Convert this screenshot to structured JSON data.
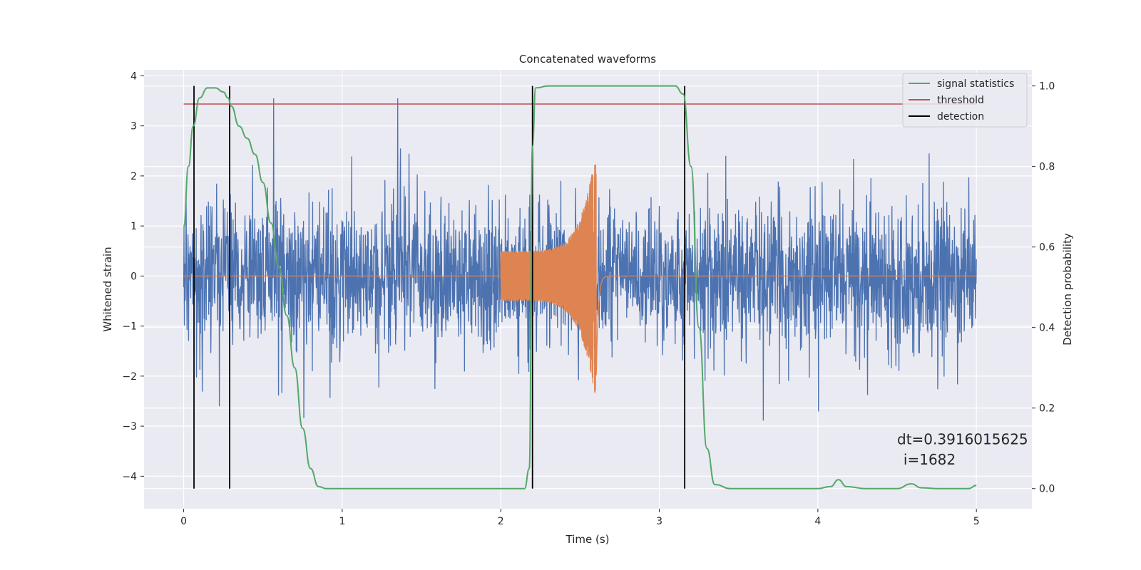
{
  "chart_data": {
    "type": "line",
    "title": "Concatenated waveforms",
    "xlabel": "Time (s)",
    "ylabel_left": "Whitened strain",
    "ylabel_right": "Detection probability",
    "xlim": [
      -0.25,
      5.35
    ],
    "ylim_left": [
      -4.65,
      4.12
    ],
    "ylim_right": [
      -0.05,
      1.04
    ],
    "x_ticks": [
      0,
      1,
      2,
      3,
      4,
      5
    ],
    "x_tick_labels": [
      "0",
      "1",
      "2",
      "3",
      "4",
      "5"
    ],
    "y_left_ticks": [
      -4,
      -3,
      -2,
      -1,
      0,
      1,
      2,
      3,
      4
    ],
    "y_left_tick_labels": [
      "−4",
      "−3",
      "−2",
      "−1",
      "0",
      "1",
      "2",
      "3",
      "4"
    ],
    "y_right_ticks": [
      0.0,
      0.2,
      0.4,
      0.6,
      0.8,
      1.0
    ],
    "y_right_tick_labels": [
      "0.0",
      "0.2",
      "0.4",
      "0.6",
      "0.8",
      "1.0"
    ],
    "grid": true,
    "legend_position": "top-right",
    "legend": [
      {
        "label": "signal statistics",
        "color": "#55a868"
      },
      {
        "label": "threshold",
        "color": "#c44e52"
      },
      {
        "label": "detection",
        "color": "#000000"
      }
    ],
    "noise": {
      "color": "#4c72b0",
      "x_range": [
        0,
        5
      ],
      "std": 0.72
    },
    "injection": {
      "color": "#dd8452",
      "start": 2.0,
      "merger": 2.6,
      "end": 2.75,
      "start_amplitude": 0.5,
      "peak_amplitude": 2.5
    },
    "signal_statistics": {
      "color": "#55a868",
      "points": [
        [
          0.0,
          0.65
        ],
        [
          0.03,
          0.8
        ],
        [
          0.06,
          0.9
        ],
        [
          0.1,
          0.97
        ],
        [
          0.15,
          0.995
        ],
        [
          0.2,
          0.995
        ],
        [
          0.25,
          0.985
        ],
        [
          0.28,
          0.97
        ],
        [
          0.3,
          0.95
        ],
        [
          0.35,
          0.9
        ],
        [
          0.4,
          0.87
        ],
        [
          0.45,
          0.83
        ],
        [
          0.5,
          0.76
        ],
        [
          0.55,
          0.66
        ],
        [
          0.6,
          0.55
        ],
        [
          0.65,
          0.43
        ],
        [
          0.7,
          0.3
        ],
        [
          0.75,
          0.15
        ],
        [
          0.8,
          0.05
        ],
        [
          0.85,
          0.005
        ],
        [
          0.9,
          0.0
        ],
        [
          2.15,
          0.0
        ],
        [
          2.18,
          0.05
        ],
        [
          2.2,
          0.85
        ],
        [
          2.22,
          0.995
        ],
        [
          2.3,
          1.0
        ],
        [
          3.1,
          1.0
        ],
        [
          3.15,
          0.98
        ],
        [
          3.2,
          0.8
        ],
        [
          3.25,
          0.4
        ],
        [
          3.3,
          0.1
        ],
        [
          3.35,
          0.01
        ],
        [
          3.45,
          0.0
        ],
        [
          4.0,
          0.0
        ],
        [
          4.08,
          0.005
        ],
        [
          4.13,
          0.022
        ],
        [
          4.18,
          0.005
        ],
        [
          4.3,
          0.0
        ],
        [
          4.5,
          0.0
        ],
        [
          4.59,
          0.012
        ],
        [
          4.65,
          0.002
        ],
        [
          4.75,
          0.0
        ],
        [
          4.95,
          0.0
        ],
        [
          5.0,
          0.008
        ]
      ]
    },
    "threshold": {
      "value": 0.955,
      "x_range": [
        0,
        5
      ],
      "color": "#c44e52"
    },
    "detections": [
      {
        "x": 0.065,
        "color": "#000000"
      },
      {
        "x": 0.29,
        "color": "#000000"
      },
      {
        "x": 2.2,
        "color": "#000000"
      },
      {
        "x": 3.16,
        "color": "#000000"
      }
    ],
    "annotations": [
      {
        "text": "dt=0.3916015625",
        "x": 4.5,
        "y": 0.11
      },
      {
        "text": "i=1682",
        "x": 4.54,
        "y": 0.06
      }
    ]
  }
}
